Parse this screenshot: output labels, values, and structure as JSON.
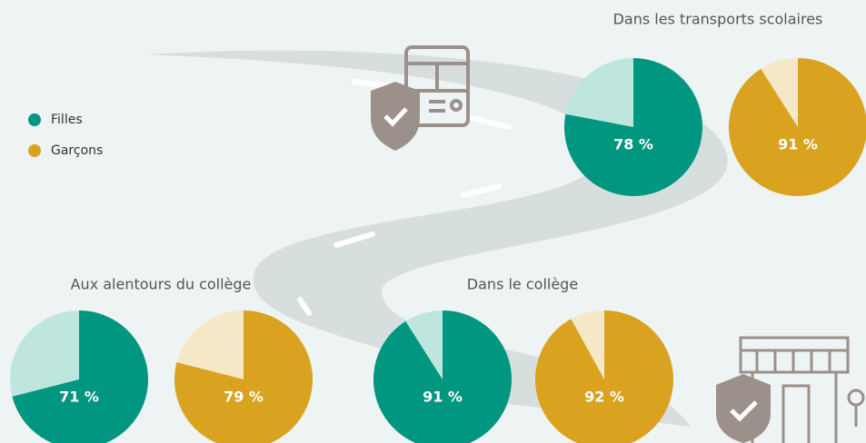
{
  "chart_data": [
    {
      "type": "pie",
      "title": "Dans les transports scolaires",
      "series": [
        {
          "name": "Filles",
          "color": "#00967f",
          "values": [
            78
          ],
          "value_labels": [
            "78 %"
          ]
        },
        {
          "name": "Garçons",
          "color": "#d9a21f",
          "values": [
            91
          ],
          "value_labels": [
            "91 %"
          ]
        }
      ]
    },
    {
      "type": "pie",
      "title": "Aux alentours du collège",
      "series": [
        {
          "name": "Filles",
          "color": "#00967f",
          "values": [
            71
          ],
          "value_labels": [
            "71 %"
          ]
        },
        {
          "name": "Garçons",
          "color": "#d9a21f",
          "values": [
            79
          ],
          "value_labels": [
            "79 %"
          ]
        }
      ]
    },
    {
      "type": "pie",
      "title": "Dans le collège",
      "series": [
        {
          "name": "Filles",
          "color": "#00967f",
          "values": [
            91
          ],
          "value_labels": [
            "91 %"
          ]
        },
        {
          "name": "Garçons",
          "color": "#d9a21f",
          "values": [
            92
          ],
          "value_labels": [
            "92 %"
          ]
        }
      ]
    }
  ]
}
